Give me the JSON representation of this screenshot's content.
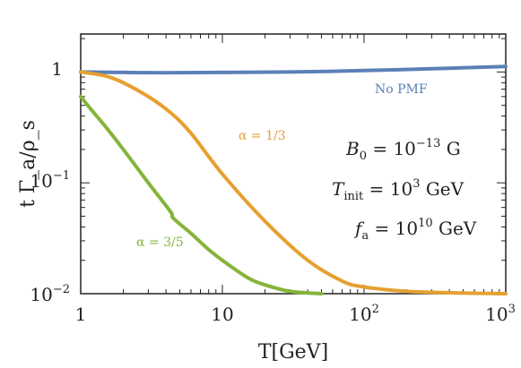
{
  "chart_data": {
    "type": "line",
    "xscale": "log",
    "yscale": "log",
    "xlim": [
      1,
      1000
    ],
    "ylim": [
      0.01,
      2.2
    ],
    "xlabel": "T[GeV]",
    "ylabel": "t Γ_a/ρ_s",
    "x_ticks": [
      {
        "value": 1,
        "base": "1",
        "exp": ""
      },
      {
        "value": 10,
        "base": "10",
        "exp": ""
      },
      {
        "value": 100,
        "base": "10",
        "exp": "2"
      },
      {
        "value": 1000,
        "base": "10",
        "exp": "3"
      }
    ],
    "y_ticks": [
      {
        "value": 1,
        "base": "1",
        "exp": ""
      },
      {
        "value": 0.1,
        "base": "10",
        "exp": "−1"
      },
      {
        "value": 0.01,
        "base": "10",
        "exp": "−2"
      }
    ],
    "series": [
      {
        "name": "No PMF",
        "color": "#5b80b8",
        "x": [
          1,
          2,
          4,
          10,
          30,
          100,
          300,
          1000
        ],
        "y": [
          1.0,
          0.99,
          0.985,
          0.99,
          1.0,
          1.03,
          1.07,
          1.12
        ]
      },
      {
        "name": "α = 1/3",
        "color": "#e6a030",
        "x": [
          1,
          1.5,
          2,
          3,
          4.3,
          6,
          10,
          20,
          40,
          70,
          100,
          200,
          400,
          1000
        ],
        "y": [
          1.0,
          0.92,
          0.8,
          0.6,
          0.43,
          0.28,
          0.12,
          0.045,
          0.02,
          0.013,
          0.0115,
          0.0105,
          0.0102,
          0.01
        ]
      },
      {
        "name": "α = 3/5",
        "color": "#86b43a",
        "x": [
          1,
          1.2,
          1.5,
          2,
          3,
          4.3,
          4.5,
          6,
          8,
          10,
          15,
          20,
          30,
          50
        ],
        "y": [
          0.6,
          0.45,
          0.32,
          0.2,
          0.1,
          0.055,
          0.048,
          0.035,
          0.025,
          0.02,
          0.014,
          0.012,
          0.0105,
          0.01
        ]
      }
    ],
    "annotations": {
      "no_pmf": "No PMF",
      "alpha_13": "α = 1/3",
      "alpha_35": "α = 3/5",
      "b0": {
        "symbol": "B",
        "sub": "0",
        "eq": " = 10",
        "exp": "−13",
        "unit": " G"
      },
      "tinit": {
        "symbol": "T",
        "sub": "init",
        "eq": " = 10",
        "exp": "3",
        "unit": " GeV"
      },
      "fa": {
        "symbol": "f",
        "sub": "a",
        "eq": " = 10",
        "exp": "10",
        "unit": " GeV"
      }
    }
  }
}
